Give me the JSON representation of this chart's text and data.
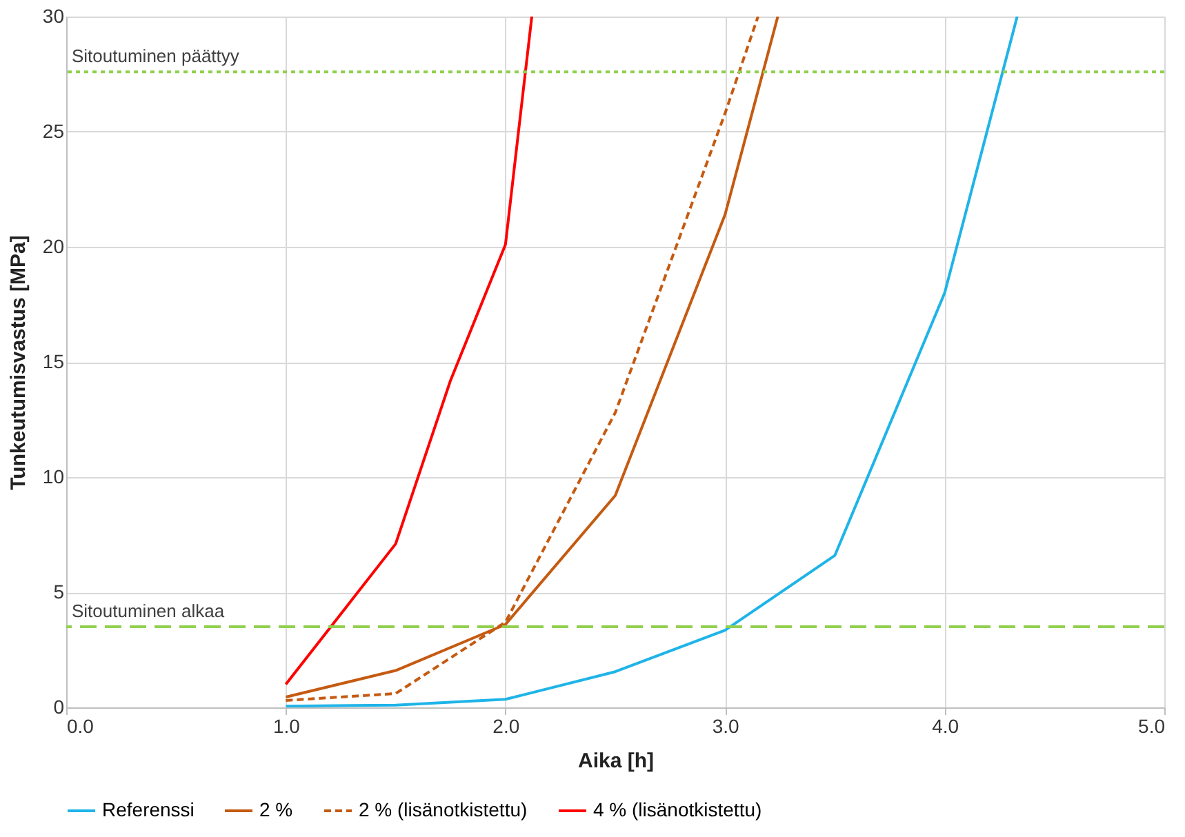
{
  "chart_data": {
    "type": "line",
    "xlabel": "Aika [h]",
    "ylabel": "Tunkeutumisvastus [MPa]",
    "xlim": [
      0,
      5
    ],
    "ylim": [
      0,
      30
    ],
    "xticks": [
      {
        "value": 0,
        "label": "0.0"
      },
      {
        "value": 1,
        "label": "1.0"
      },
      {
        "value": 2,
        "label": "2.0"
      },
      {
        "value": 3,
        "label": "3.0"
      },
      {
        "value": 4,
        "label": "4.0"
      },
      {
        "value": 5,
        "label": "5.0"
      }
    ],
    "yticks": [
      0,
      5,
      10,
      15,
      20,
      25,
      30
    ],
    "grid": true,
    "legend": "bottom",
    "marker": "none",
    "series": [
      {
        "name": "Referenssi",
        "color": "#1fb4e8",
        "line_style": "solid",
        "x": [
          1.0,
          1.5,
          2.0,
          2.5,
          3.0,
          3.5,
          4.0,
          4.33
        ],
        "values": [
          0.05,
          0.1,
          0.35,
          1.55,
          3.35,
          6.6,
          18.0,
          30
        ]
      },
      {
        "name": "2 %",
        "color": "#c55a11",
        "line_style": "solid",
        "x": [
          1.0,
          1.5,
          2.0,
          2.5,
          3.0,
          3.24
        ],
        "values": [
          0.45,
          1.6,
          3.6,
          9.2,
          21.4,
          30
        ]
      },
      {
        "name": "2 % (lisänotkistettu)",
        "color": "#c55a11",
        "line_style": "dashed",
        "x": [
          1.0,
          1.5,
          2.0,
          2.5,
          3.0,
          3.15
        ],
        "values": [
          0.3,
          0.6,
          3.7,
          12.8,
          25.8,
          30
        ]
      },
      {
        "name": "4 % (lisänotkistettu)",
        "color": "#ff0000",
        "line_style": "solid",
        "x": [
          1.0,
          1.5,
          1.75,
          2.0,
          2.12
        ],
        "values": [
          1.0,
          7.1,
          14.2,
          20.1,
          30
        ]
      }
    ],
    "ref_lines": [
      {
        "axis": "y",
        "value": 27.6,
        "label": "Sitoutuminen päättyy",
        "color": "#92d050",
        "line_style": "dotted"
      },
      {
        "axis": "y",
        "value": 3.5,
        "label": "Sitoutuminen alkaa",
        "color": "#92d050",
        "line_style": "dashed"
      }
    ]
  }
}
